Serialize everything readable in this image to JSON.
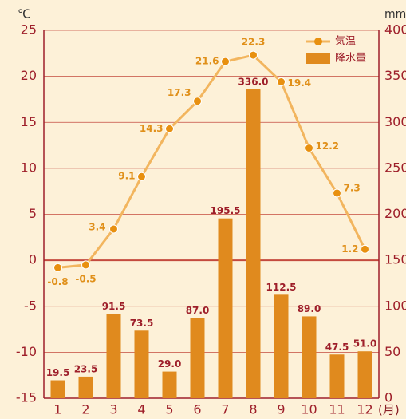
{
  "chart_data": {
    "type": "climate",
    "y_label": "℃",
    "y2_label": "mm",
    "x_label": "(月)",
    "categories": [
      "1",
      "2",
      "3",
      "4",
      "5",
      "6",
      "7",
      "8",
      "9",
      "10",
      "11",
      "12"
    ],
    "series": [
      {
        "name": "気温",
        "color": "#f2b55e",
        "marker_color": "#e8900f",
        "values": [
          -0.8,
          -0.5,
          3.4,
          9.1,
          14.3,
          17.3,
          21.6,
          22.3,
          19.4,
          12.2,
          7.3,
          1.2
        ]
      },
      {
        "name": "降水量",
        "color": "#e08a1e",
        "axis": "y2",
        "values": [
          19.5,
          23.5,
          91.5,
          73.5,
          29.0,
          87.0,
          195.5,
          336.0,
          112.5,
          89.0,
          47.5,
          51.0
        ],
        "value_labels": [
          "19.5",
          "23.5",
          "91.5",
          "73.5",
          "29.0",
          "87.0",
          "195.5",
          "336.0",
          "112.5",
          "89.0",
          "47.5",
          "51.0"
        ]
      }
    ],
    "ylim": [
      -15,
      25
    ],
    "yticks": [
      -15,
      -10,
      -5,
      0,
      5,
      10,
      15,
      20,
      25
    ],
    "y2lim": [
      0,
      400
    ],
    "y2ticks": [
      0,
      50,
      100,
      150,
      200,
      250,
      300,
      350,
      400
    ],
    "grid": true
  }
}
